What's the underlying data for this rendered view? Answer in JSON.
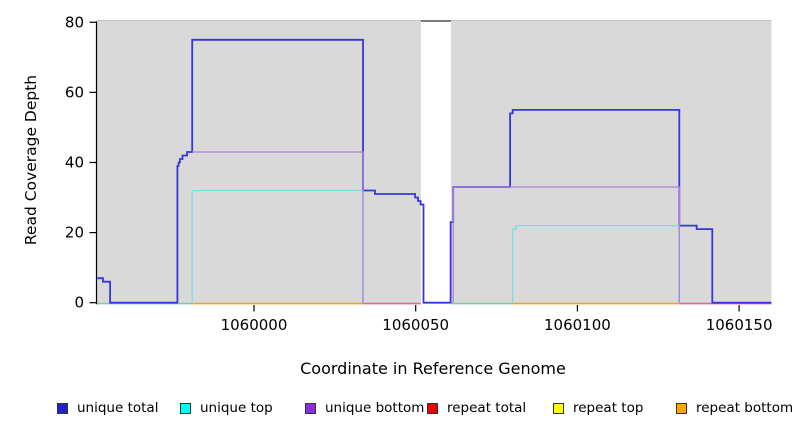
{
  "figure": {
    "x_axis": {
      "title": "Coordinate in Reference Genome",
      "tick_labels": [
        "1060000",
        "1060050",
        "1060100",
        "1060150"
      ],
      "tick_values": [
        1060000,
        1060050,
        1060100,
        1060150
      ]
    },
    "y_axis": {
      "title": "Read Coverage Depth",
      "tick_labels": [
        "0",
        "20",
        "40",
        "60",
        "80"
      ],
      "tick_values": [
        0,
        20,
        40,
        60,
        80
      ]
    }
  },
  "chart_data": {
    "type": "line",
    "subtype": "step-coverage",
    "title": "",
    "xlabel": "Coordinate in Reference Genome",
    "ylabel": "Read Coverage Depth",
    "xlim": [
      1059951,
      1060160
    ],
    "ylim": [
      0,
      80
    ],
    "grid": false,
    "legend_position": "bottom",
    "panel_bg": "#d9d9d9",
    "panel_top_edge_color": "#c3c3c3",
    "masked_region": {
      "from": 1060051.6,
      "to": 1060060.9,
      "fill": "#ffffff",
      "cap_color": "#7d7d7d"
    },
    "series": [
      {
        "name": "unique total",
        "color": "#3636df",
        "width": 1.8,
        "runs": [
          [
            [
              1059951.5,
              7
            ],
            [
              1059953.3,
              6
            ],
            [
              1059955.5,
              0
            ],
            [
              1059976.3,
              39
            ],
            [
              1059976.7,
              40
            ],
            [
              1059977.1,
              41
            ],
            [
              1059977.9,
              42
            ],
            [
              1059979.3,
              43
            ],
            [
              1059980.9,
              75
            ],
            [
              1060033.7,
              32
            ],
            [
              1060037.4,
              31
            ],
            [
              1060049.8,
              30
            ],
            [
              1060050.7,
              29
            ],
            [
              1060051.5,
              28
            ],
            [
              1060052.4,
              0
            ],
            [
              1060060.8,
              23
            ],
            [
              1060061.6,
              33
            ],
            [
              1060079.2,
              54
            ],
            [
              1060080,
              55
            ],
            [
              1060131.5,
              22
            ],
            [
              1060136.9,
              21
            ],
            [
              1060141.7,
              0
            ],
            [
              1060160,
              0
            ]
          ]
        ]
      },
      {
        "name": "unique top",
        "color": "#74e1e6",
        "width": 1.3,
        "runs": [
          [
            [
              1059980.9,
              0
            ],
            [
              1059980.9,
              32
            ],
            [
              1060033.7,
              0
            ]
          ],
          [
            [
              1060080,
              0
            ],
            [
              1060080,
              21
            ],
            [
              1060081,
              22
            ],
            [
              1060131.5,
              0
            ]
          ]
        ]
      },
      {
        "name": "unique bottom",
        "color": "#b07fd8",
        "width": 1.3,
        "runs": [
          [
            [
              1059980.9,
              43
            ],
            [
              1060033.7,
              0
            ]
          ],
          [
            [
              1060061.6,
              0
            ],
            [
              1060061.6,
              33
            ],
            [
              1060131.5,
              0
            ]
          ]
        ]
      },
      {
        "name": "repeat total",
        "color": "#ee0000",
        "width": 1.3,
        "runs": [
          [
            [
              1059951.5,
              0
            ],
            [
              1060160,
              0
            ]
          ]
        ]
      },
      {
        "name": "repeat top",
        "color": "#ffff00",
        "width": 1.3,
        "runs": [
          [
            [
              1059951.5,
              0
            ],
            [
              1060160,
              0
            ]
          ]
        ]
      },
      {
        "name": "repeat bottom",
        "color": "#ffa500",
        "width": 1.3,
        "runs": [
          [
            [
              1059951.5,
              0
            ],
            [
              1060160,
              0
            ]
          ]
        ]
      }
    ],
    "baseline_segments": [
      {
        "from": 1059951.5,
        "to": 1059980.9,
        "color": "#7bcf9d"
      },
      {
        "from": 1059980.9,
        "to": 1060033.7,
        "color": "#ff9d1e"
      },
      {
        "from": 1060033.7,
        "to": 1060051.6,
        "color": "#e06898"
      },
      {
        "from": 1060060.9,
        "to": 1060080,
        "color": "#7bcf9d"
      },
      {
        "from": 1060080,
        "to": 1060131.5,
        "color": "#ff9d1e"
      },
      {
        "from": 1060131.5,
        "to": 1060160,
        "color": "#e06898"
      }
    ]
  },
  "legend": {
    "items": [
      {
        "label": "unique total",
        "swatch": "#2222cc"
      },
      {
        "label": "unique top",
        "swatch": "#00ffff"
      },
      {
        "label": "unique bottom",
        "swatch": "#8b2be2"
      },
      {
        "label": "repeat total",
        "swatch": "#ee0000"
      },
      {
        "label": "repeat top",
        "swatch": "#ffff00"
      },
      {
        "label": "repeat bottom",
        "swatch": "#ffa500"
      }
    ]
  }
}
